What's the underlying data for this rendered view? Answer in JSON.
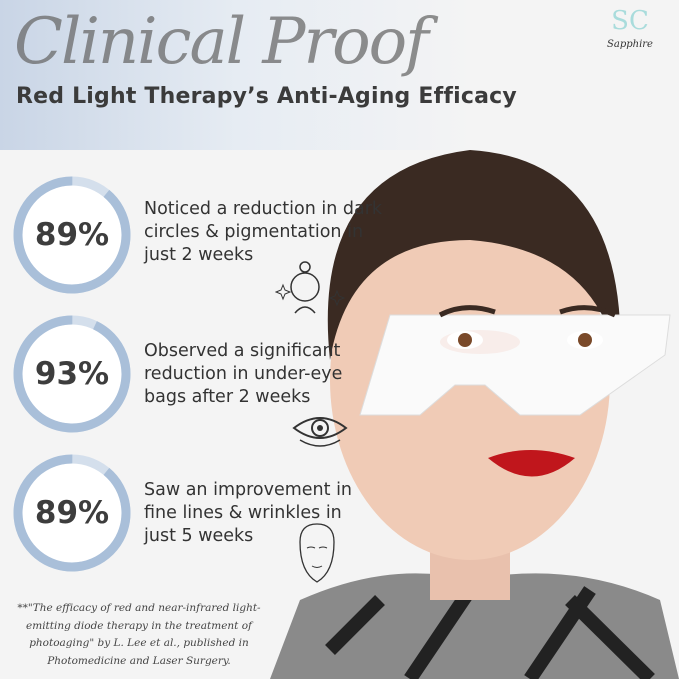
{
  "header": {
    "script_title": "Clinical Proof",
    "subtitle": "Red Light Therapy’s Anti-Aging Efficacy"
  },
  "logo": {
    "monogram": "SC",
    "word": "Sapphire"
  },
  "colors": {
    "ring": "#a9bfd9",
    "ring_light": "#d4dfec",
    "text": "#333333"
  },
  "stats": [
    {
      "percent": 89,
      "label": "89%",
      "text_lines": [
        "Noticed a reduction in dark",
        "circles & pigmentation in",
        "just 2 weeks"
      ],
      "icon": "face-sparkle-icon"
    },
    {
      "percent": 93,
      "label": "93%",
      "text_lines": [
        "Observed a significant",
        "reduction in under-eye",
        "bags after 2 weeks"
      ],
      "icon": "eye-icon"
    },
    {
      "percent": 89,
      "label": "89%",
      "text_lines": [
        "Saw an improvement in",
        "fine lines & wrinkles in",
        "just 5 weeks"
      ],
      "icon": "face-outline-icon"
    }
  ],
  "footnote": {
    "lines": [
      "**\"The efficacy of red and near-infrared light-",
      "emitting diode therapy in the treatment of",
      "photoaging\" by L. Lee et al., published in",
      "Photomedicine and Laser Surgery."
    ]
  }
}
